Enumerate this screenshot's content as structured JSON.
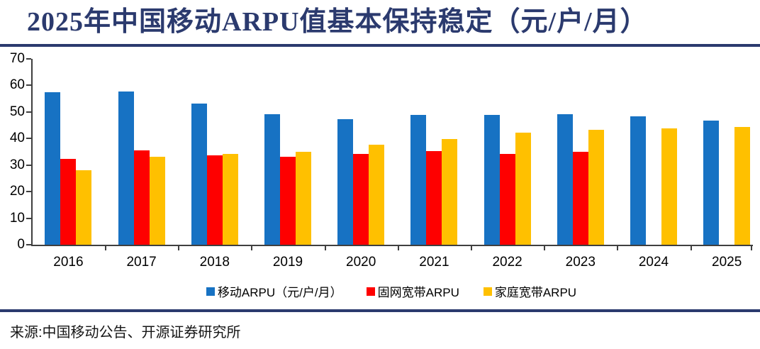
{
  "title": {
    "text": "2025年中国移动ARPU值基本保持稳定（元/户/月）"
  },
  "source": {
    "text": "来源:中国移动公告、开源证券研究所"
  },
  "colors": {
    "navy": "#2B3A6E",
    "axis": "#3F3F3F",
    "blue": "#1772C3",
    "red": "#FE0000",
    "yellow": "#FFC000"
  },
  "chart_data": {
    "type": "bar",
    "title": "2025年中国移动ARPU值基本保持稳定（元/户/月）",
    "categories": [
      "2016",
      "2017",
      "2018",
      "2019",
      "2020",
      "2021",
      "2022",
      "2023",
      "2024",
      "2025"
    ],
    "series": [
      {
        "key": "mobile-arpu",
        "name": "移动ARPU（元/户/月）",
        "color_key": "blue",
        "values": [
          57.4,
          57.7,
          53.1,
          49.1,
          47.4,
          48.8,
          49.0,
          49.3,
          48.5,
          46.8
        ]
      },
      {
        "key": "fixed-broadband-arpu",
        "name": "固网宽带ARPU",
        "color_key": "red",
        "values": [
          32.3,
          35.5,
          33.6,
          33.1,
          34.1,
          35.2,
          34.1,
          34.9,
          null,
          null
        ]
      },
      {
        "key": "home-broadband-arpu",
        "name": "家庭宽带ARPU",
        "color_key": "yellow",
        "values": [
          28.1,
          33.2,
          34.3,
          35.1,
          37.8,
          39.8,
          42.1,
          43.2,
          43.8,
          44.4
        ]
      }
    ],
    "xlabel": "",
    "ylabel": "",
    "ylim": [
      0,
      70
    ],
    "yticks": [
      0,
      10,
      20,
      30,
      40,
      50,
      60,
      70
    ],
    "grid": false,
    "legend_position": "bottom"
  }
}
